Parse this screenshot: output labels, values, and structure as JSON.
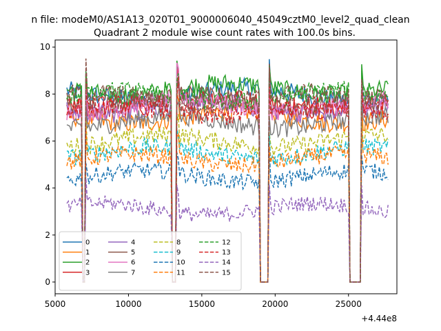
{
  "chart_data": {
    "type": "line",
    "suptitle": "n file: modeM0/AS1A13_020T01_9000006040_45049cztM0_level2_quad_clean",
    "title": "Quadrant 2 module wise count rates with 100.0s bins.",
    "xlabel": "",
    "ylabel": "",
    "x_offset_label": "+4.44e8",
    "xlim": [
      5000,
      28300
    ],
    "ylim": [
      -0.5,
      10.3
    ],
    "xticks": [
      5000,
      10000,
      15000,
      20000,
      25000
    ],
    "yticks": [
      0,
      2,
      4,
      6,
      8,
      10
    ],
    "grid": false,
    "legend_position": "lower-left",
    "legend_columns": 4,
    "time_range": [
      5800,
      27700
    ],
    "gaps": [
      [
        6850,
        7050
      ],
      [
        12900,
        13300
      ],
      [
        18900,
        19550
      ],
      [
        25000,
        25850
      ]
    ],
    "series": [
      {
        "name": "0",
        "base": 8.0,
        "color": "#1f77b4",
        "dash": "solid"
      },
      {
        "name": "1",
        "base": 7.0,
        "color": "#ff7f0e",
        "dash": "solid"
      },
      {
        "name": "2",
        "base": 8.2,
        "color": "#2ca02c",
        "dash": "solid"
      },
      {
        "name": "3",
        "base": 7.6,
        "color": "#d62728",
        "dash": "solid"
      },
      {
        "name": "4",
        "base": 7.4,
        "color": "#9467bd",
        "dash": "solid"
      },
      {
        "name": "5",
        "base": 7.7,
        "color": "#8c564b",
        "dash": "solid"
      },
      {
        "name": "6",
        "base": 7.5,
        "color": "#e377c2",
        "dash": "solid"
      },
      {
        "name": "7",
        "base": 6.8,
        "color": "#7f7f7f",
        "dash": "solid"
      },
      {
        "name": "8",
        "base": 6.0,
        "color": "#bcbd22",
        "dash": "dashed"
      },
      {
        "name": "9",
        "base": 5.5,
        "color": "#17becf",
        "dash": "dashed"
      },
      {
        "name": "10",
        "base": 4.5,
        "color": "#1f77b4",
        "dash": "dashed"
      },
      {
        "name": "11",
        "base": 5.2,
        "color": "#ff7f0e",
        "dash": "dashed"
      },
      {
        "name": "12",
        "base": 7.9,
        "color": "#2ca02c",
        "dash": "dashed"
      },
      {
        "name": "13",
        "base": 7.3,
        "color": "#d62728",
        "dash": "dashed"
      },
      {
        "name": "14",
        "base": 3.1,
        "color": "#9467bd",
        "dash": "dashed"
      },
      {
        "name": "15",
        "base": 7.8,
        "color": "#8c564b",
        "dash": "dashed"
      }
    ]
  }
}
